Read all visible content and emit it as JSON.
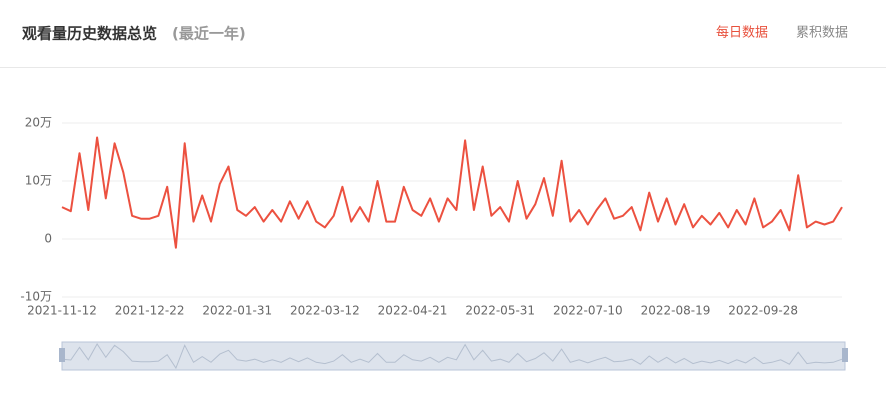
{
  "header": {
    "title": "观看量历史数据总览",
    "subtitle": "(最近一年)",
    "tabs": [
      "每日数据",
      "累积数据"
    ]
  },
  "chart_data": {
    "type": "line",
    "categories": [
      "2021-11-12",
      null,
      null,
      null,
      null,
      null,
      null,
      null,
      null,
      null,
      "2021-12-22",
      null,
      null,
      null,
      null,
      null,
      null,
      null,
      null,
      null,
      "2022-01-31",
      null,
      null,
      null,
      null,
      null,
      null,
      null,
      null,
      null,
      "2022-03-12",
      null,
      null,
      null,
      null,
      null,
      null,
      null,
      null,
      null,
      "2022-04-21",
      null,
      null,
      null,
      null,
      null,
      null,
      null,
      null,
      null,
      "2022-05-31",
      null,
      null,
      null,
      null,
      null,
      null,
      null,
      null,
      null,
      "2022-07-10",
      null,
      null,
      null,
      null,
      null,
      null,
      null,
      null,
      null,
      "2022-08-19",
      null,
      null,
      null,
      null,
      null,
      null,
      null,
      null,
      null,
      "2022-09-28",
      null,
      null,
      null,
      null,
      null,
      null,
      null,
      null,
      null
    ],
    "series": [
      {
        "color": "#ec5140",
        "values": [
          5.5,
          4.8,
          14.8,
          5,
          17.5,
          7,
          16.5,
          11.5,
          4,
          3.5,
          3.5,
          4,
          9,
          -1.5,
          16.5,
          3,
          7.5,
          3,
          9.5,
          12.5,
          5,
          4,
          5.5,
          3,
          5,
          3,
          6.5,
          3.5,
          6.5,
          3,
          2,
          4,
          9,
          3,
          5.5,
          3,
          10,
          3,
          3,
          9,
          5,
          4,
          7,
          3,
          7,
          5,
          17,
          5,
          12.5,
          4,
          5.5,
          3,
          10,
          3.5,
          6,
          10.5,
          4,
          13.5,
          3,
          5,
          2.5,
          5,
          7,
          3.5,
          4,
          5.5,
          1.5,
          8,
          3,
          7,
          2.5,
          6,
          2,
          4,
          2.5,
          4.5,
          2,
          5,
          2.5,
          7,
          2,
          3,
          5,
          1.5,
          11,
          2,
          3,
          2.5,
          3,
          5.5
        ]
      }
    ],
    "ylim": [
      -10,
      20
    ],
    "yticks": [
      {
        "value": -10,
        "label": "-10万"
      },
      0,
      {
        "value": 10,
        "label": "10万"
      },
      {
        "value": 20,
        "label": "20万"
      }
    ],
    "grid": true
  }
}
